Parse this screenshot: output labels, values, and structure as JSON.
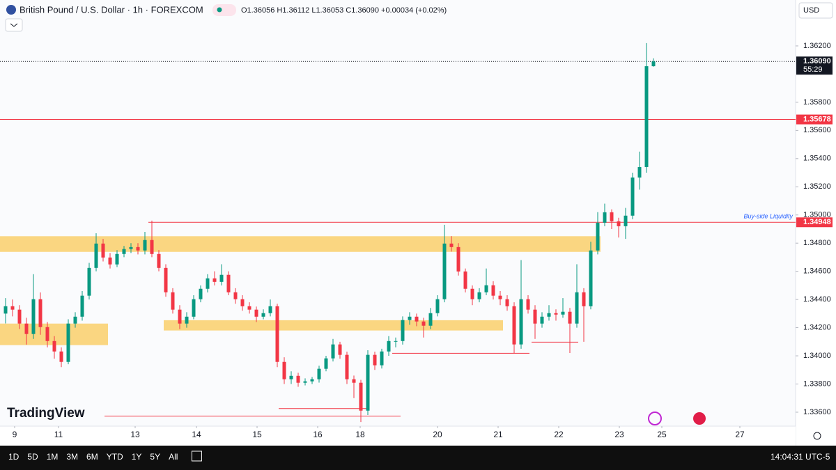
{
  "chart_data": {
    "type": "candlestick",
    "up_color": "#089981",
    "down_color": "#f23645",
    "candles": [
      [
        1.343,
        1.3441,
        1.3423,
        1.34352
      ],
      [
        1.34352,
        1.344,
        1.3428,
        1.34328
      ],
      [
        1.34328,
        1.3436,
        1.3419,
        1.34229
      ],
      [
        1.34229,
        1.3427,
        1.3408,
        1.34155
      ],
      [
        1.34155,
        1.3458,
        1.3412,
        1.34402
      ],
      [
        1.34402,
        1.3445,
        1.3415,
        1.34204
      ],
      [
        1.34204,
        1.3424,
        1.3406,
        1.34105
      ],
      [
        1.34105,
        1.3414,
        1.3398,
        1.34031
      ],
      [
        1.34031,
        1.3406,
        1.3392,
        1.33957
      ],
      [
        1.33957,
        1.3426,
        1.3394,
        1.34229
      ],
      [
        1.34229,
        1.3431,
        1.342,
        1.34278
      ],
      [
        1.34278,
        1.3446,
        1.3425,
        1.34427
      ],
      [
        1.34427,
        1.3466,
        1.344,
        1.34624
      ],
      [
        1.34624,
        1.3487,
        1.346,
        1.34797
      ],
      [
        1.34797,
        1.3483,
        1.3467,
        1.34698
      ],
      [
        1.34698,
        1.3473,
        1.3462,
        1.34649
      ],
      [
        1.34649,
        1.3475,
        1.3463,
        1.34723
      ],
      [
        1.34723,
        1.3478,
        1.347,
        1.34758
      ],
      [
        1.34758,
        1.348,
        1.3473,
        1.34772
      ],
      [
        1.34772,
        1.348,
        1.3472,
        1.34748
      ],
      [
        1.34748,
        1.3488,
        1.3472,
        1.34822
      ],
      [
        1.34822,
        1.3496,
        1.347,
        1.34723
      ],
      [
        1.34723,
        1.3475,
        1.346,
        1.34624
      ],
      [
        1.34624,
        1.3465,
        1.3442,
        1.34451
      ],
      [
        1.34451,
        1.3448,
        1.343,
        1.34328
      ],
      [
        1.34328,
        1.3436,
        1.3419,
        1.34229
      ],
      [
        1.34229,
        1.3431,
        1.342,
        1.34278
      ],
      [
        1.34278,
        1.3443,
        1.3426,
        1.34402
      ],
      [
        1.34402,
        1.345,
        1.3438,
        1.34476
      ],
      [
        1.34476,
        1.3458,
        1.3445,
        1.3455
      ],
      [
        1.3455,
        1.346,
        1.345,
        1.34525
      ],
      [
        1.34525,
        1.3465,
        1.345,
        1.34575
      ],
      [
        1.34575,
        1.346,
        1.3443,
        1.34451
      ],
      [
        1.34451,
        1.3448,
        1.3437,
        1.34402
      ],
      [
        1.34402,
        1.3443,
        1.3432,
        1.34352
      ],
      [
        1.34352,
        1.3438,
        1.343,
        1.34328
      ],
      [
        1.34328,
        1.3435,
        1.3424,
        1.34278
      ],
      [
        1.34278,
        1.3433,
        1.3426,
        1.34303
      ],
      [
        1.34303,
        1.344,
        1.3428,
        1.34352
      ],
      [
        1.34352,
        1.3437,
        1.3392,
        1.33957
      ],
      [
        1.33957,
        1.3399,
        1.338,
        1.33834
      ],
      [
        1.33834,
        1.3389,
        1.338,
        1.33858
      ],
      [
        1.33858,
        1.3388,
        1.3378,
        1.33809
      ],
      [
        1.33809,
        1.3384,
        1.3379,
        1.33819
      ],
      [
        1.33819,
        1.3385,
        1.338,
        1.33834
      ],
      [
        1.33834,
        1.3393,
        1.3381,
        1.33908
      ],
      [
        1.33908,
        1.34,
        1.3389,
        1.33982
      ],
      [
        1.33982,
        1.3412,
        1.3396,
        1.34081
      ],
      [
        1.34081,
        1.341,
        1.3398,
        1.34007
      ],
      [
        1.34007,
        1.3403,
        1.338,
        1.33834
      ],
      [
        1.33834,
        1.3386,
        1.337,
        1.33809
      ],
      [
        1.33809,
        1.3383,
        1.3353,
        1.33611
      ],
      [
        1.33611,
        1.3404,
        1.3358,
        1.34007
      ],
      [
        1.34007,
        1.3403,
        1.339,
        1.33933
      ],
      [
        1.33933,
        1.3405,
        1.3391,
        1.34031
      ],
      [
        1.34031,
        1.3414,
        1.34,
        1.34105
      ],
      [
        1.34105,
        1.3413,
        1.3406,
        1.34105
      ],
      [
        1.34105,
        1.3428,
        1.3408,
        1.34254
      ],
      [
        1.34254,
        1.3431,
        1.3422,
        1.34278
      ],
      [
        1.34278,
        1.343,
        1.3421,
        1.34244
      ],
      [
        1.34244,
        1.3427,
        1.3413,
        1.34214
      ],
      [
        1.34214,
        1.3434,
        1.3419,
        1.34303
      ],
      [
        1.34303,
        1.3443,
        1.3428,
        1.34402
      ],
      [
        1.34402,
        1.3493,
        1.3438,
        1.34797
      ],
      [
        1.34797,
        1.3485,
        1.3474,
        1.34772
      ],
      [
        1.34772,
        1.348,
        1.3457,
        1.34599
      ],
      [
        1.34599,
        1.3462,
        1.3445,
        1.34476
      ],
      [
        1.34476,
        1.345,
        1.3436,
        1.34402
      ],
      [
        1.34402,
        1.3448,
        1.3438,
        1.34451
      ],
      [
        1.34451,
        1.3462,
        1.3443,
        1.34501
      ],
      [
        1.34501,
        1.3453,
        1.344,
        1.34427
      ],
      [
        1.34427,
        1.3446,
        1.3436,
        1.34402
      ],
      [
        1.34402,
        1.3443,
        1.3432,
        1.34352
      ],
      [
        1.34352,
        1.3438,
        1.3402,
        1.34081
      ],
      [
        1.34081,
        1.3468,
        1.3405,
        1.34402
      ],
      [
        1.34402,
        1.3443,
        1.343,
        1.34328
      ],
      [
        1.34328,
        1.3436,
        1.3412,
        1.34229
      ],
      [
        1.34229,
        1.3431,
        1.342,
        1.34278
      ],
      [
        1.34278,
        1.3436,
        1.3425,
        1.34303
      ],
      [
        1.34303,
        1.3433,
        1.3425,
        1.34293
      ],
      [
        1.34293,
        1.3441,
        1.3427,
        1.34313
      ],
      [
        1.34313,
        1.3434,
        1.3402,
        1.34229
      ],
      [
        1.34229,
        1.3465,
        1.342,
        1.34451
      ],
      [
        1.34451,
        1.3448,
        1.341,
        1.34352
      ],
      [
        1.34352,
        1.3481,
        1.3433,
        1.34748
      ],
      [
        1.34748,
        1.3502,
        1.3472,
        1.34945
      ],
      [
        1.34945,
        1.3508,
        1.3492,
        1.35019
      ],
      [
        1.35019,
        1.3504,
        1.349,
        1.34955
      ],
      [
        1.34955,
        1.3498,
        1.3484,
        1.3492
      ],
      [
        1.3492,
        1.3505,
        1.3483,
        1.34995
      ],
      [
        1.34995,
        1.353,
        1.3497,
        1.35266
      ],
      [
        1.35266,
        1.3545,
        1.3518,
        1.3534
      ],
      [
        1.3534,
        1.3622,
        1.353,
        1.36056
      ],
      [
        1.36056,
        1.36112,
        1.36053,
        1.3609
      ]
    ],
    "xlim": [
      -0.8,
      113.4
    ],
    "xticks": [
      {
        "value": 1.3,
        "label": "9"
      },
      {
        "value": 7.6,
        "label": "11"
      },
      {
        "value": 18.6,
        "label": "13"
      },
      {
        "value": 27.4,
        "label": "14"
      },
      {
        "value": 36.1,
        "label": "15"
      },
      {
        "value": 44.8,
        "label": "16"
      },
      {
        "value": 50.9,
        "label": "18"
      },
      {
        "value": 62,
        "label": "20"
      },
      {
        "value": 70.7,
        "label": "21"
      },
      {
        "value": 79.4,
        "label": "22"
      },
      {
        "value": 88.1,
        "label": "23"
      },
      {
        "value": 94.2,
        "label": "25"
      },
      {
        "value": 105.4,
        "label": "27"
      }
    ],
    "ylim": [
      1.33501,
      1.36526
    ],
    "yticks": [
      {
        "value": 1.336,
        "label": "1.33600"
      },
      {
        "value": 1.338,
        "label": "1.33800"
      },
      {
        "value": 1.34,
        "label": "1.34000"
      },
      {
        "value": 1.342,
        "label": "1.34200"
      },
      {
        "value": 1.344,
        "label": "1.34400"
      },
      {
        "value": 1.346,
        "label": "1.34600"
      },
      {
        "value": 1.348,
        "label": "1.34800"
      },
      {
        "value": 1.35,
        "label": "1.35000"
      },
      {
        "value": 1.352,
        "label": "1.35200"
      },
      {
        "value": 1.354,
        "label": "1.35400"
      },
      {
        "value": 1.356,
        "label": "1.35600"
      },
      {
        "value": 1.358,
        "label": "1.35800"
      },
      {
        "value": 1.362,
        "label": "1.36200"
      }
    ],
    "zones": [
      {
        "y": [
          1.34738,
          1.34849
        ],
        "x": [
          -0.8,
          85.4
        ]
      },
      {
        "y": [
          1.34076,
          1.34229
        ],
        "x": [
          -0.8,
          14.7
        ]
      },
      {
        "y": [
          1.3418,
          1.34253
        ],
        "x": [
          22.7,
          71.4
        ]
      }
    ],
    "zone_color": "#f9cf6b",
    "segments": [
      {
        "value": 1.33626,
        "x": [
          39.2,
          52.2
        ]
      },
      {
        "value": 1.33572,
        "x": [
          14.2,
          56.7
        ]
      },
      {
        "value": 1.34018,
        "x": [
          55.5,
          75.2
        ]
      },
      {
        "value": 1.34097,
        "x": [
          75.5,
          82.2
        ]
      }
    ],
    "segment_color": "#f23645",
    "price_lines": [
      {
        "value": 1.3609,
        "label": "1.36090",
        "sublabel": "55:29",
        "color": "#131722",
        "dotted": true
      },
      {
        "value": 1.35678,
        "label": "1.35678",
        "color": "#f23645"
      },
      {
        "value": 1.34948,
        "label": "1.34948",
        "color": "#f23645",
        "start": 20.5,
        "note": "Buy-side Liquidity"
      }
    ]
  },
  "ui": {
    "symbol": "British Pound / U.S. Dollar · 1h · FOREXCOM",
    "ohlc": "O1.36056 H1.36112 L1.36053 C1.36090 +0.00034 (+0.02%)",
    "currency": "USD",
    "logo": "TradingView",
    "ranges": [
      "1D",
      "5D",
      "1M",
      "3M",
      "6M",
      "YTD",
      "1Y",
      "5Y",
      "All"
    ],
    "clock": "14:04:31 UTC-5"
  }
}
